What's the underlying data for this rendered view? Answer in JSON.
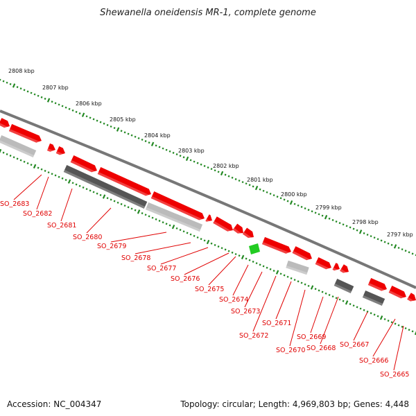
{
  "title": "Shewanella oneidensis MR-1, complete genome",
  "footer": {
    "accession": "Accession: NC_004347",
    "info": "Topology: circular; Length: 4,969,803 bp; Genes: 4,448"
  },
  "colors": {
    "forward_gene": "#ee0000",
    "reverse_gene_dark": "#555555",
    "reverse_gene_light": "#bbbbbb",
    "highlight_gene": "#22cc22",
    "backbone": "#777777",
    "tick_track": "#228822",
    "gene_label": "#e00000"
  },
  "ruler": {
    "labels": [
      "2808 kbp",
      "2807 kbp",
      "2806 kbp",
      "2805 kbp",
      "2804 kbp",
      "2803 kbp",
      "2802 kbp",
      "2801 kbp",
      "2800 kbp",
      "2799 kbp",
      "2798 kbp",
      "2797 kbp"
    ]
  },
  "genes": [
    "SO_2683",
    "SO_2682",
    "SO_2681",
    "SO_2680",
    "SO_2679",
    "SO_2678",
    "SO_2677",
    "SO_2676",
    "SO_2675",
    "SO_2674",
    "SO_2673",
    "SO_2672",
    "SO_2671",
    "SO_2670",
    "SO_2669",
    "SO_2668",
    "SO_2667",
    "SO_2666",
    "SO_2665"
  ]
}
